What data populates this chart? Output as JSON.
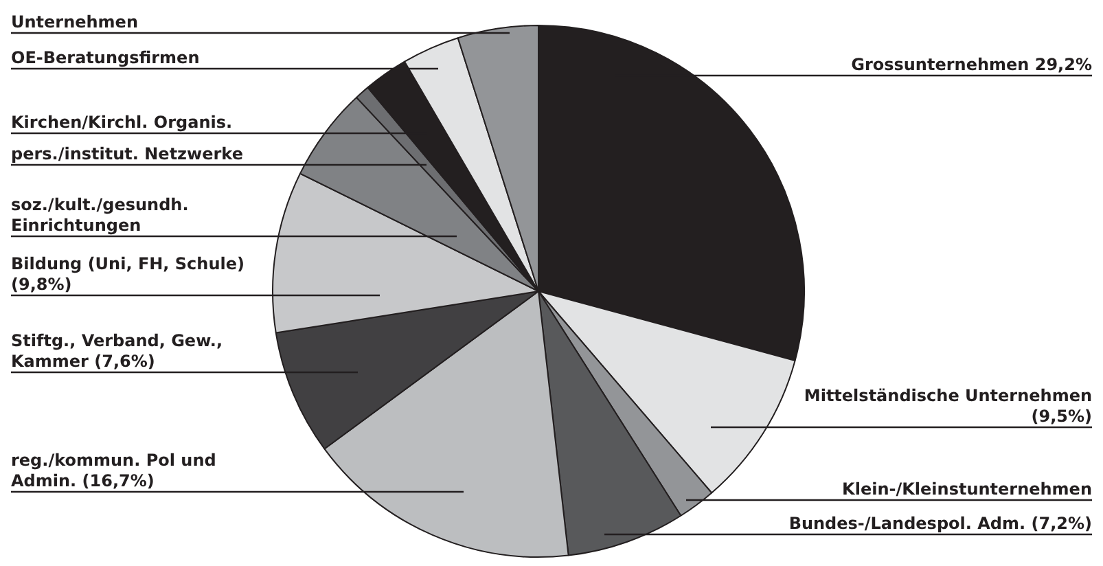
{
  "chart_data": {
    "type": "pie",
    "categories": [
      "Grossunternehmen 29,2%",
      "Mittelständische Unternehmen (9,5%)",
      "Klein-/Kleinstunternehmen",
      "Bundes-/Landespol. Adm. (7,2%)",
      "reg./kommun. Pol und Admin. (16,7%)",
      "Stiftg., Verband, Gew., Kammer (7,6%)",
      "Bildung (Uni, FH, Schule) (9,8%)",
      "soz./kult./gesundh. Einrichtungen",
      "pers./institut. Netzwerke",
      "Kirchen/Kirchl. Organis.",
      "OE-Beratungsfirmen",
      "Unternehmen"
    ],
    "values": [
      29.2,
      9.5,
      2.3,
      7.2,
      16.7,
      7.6,
      9.8,
      5.7,
      0.9,
      2.7,
      3.5,
      4.9
    ],
    "colors": [
      "#231f20",
      "#e2e3e4",
      "#939598",
      "#58595b",
      "#bcbec0",
      "#414042",
      "#c7c8ca",
      "#808285",
      "#6d6e71",
      "#231f20",
      "#e2e3e4",
      "#939598"
    ],
    "legend": false
  }
}
